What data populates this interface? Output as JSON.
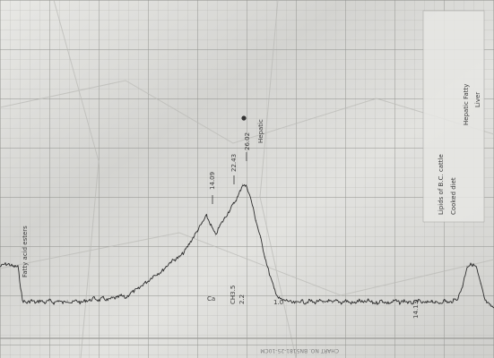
{
  "chart_data": {
    "type": "line",
    "title": "",
    "xlabel": "",
    "ylabel": "",
    "grid": true,
    "ylim": [
      0,
      100
    ],
    "x": [
      0,
      5,
      10,
      15,
      20,
      25,
      30,
      35,
      40,
      45,
      50,
      55,
      60,
      65,
      70,
      75,
      80,
      85,
      90,
      95,
      100,
      105,
      110,
      115,
      120,
      125,
      130,
      135,
      140,
      145,
      150,
      155,
      160,
      165,
      170,
      175,
      180,
      185,
      190,
      195,
      200,
      205,
      210,
      215,
      220,
      225,
      230,
      235,
      240,
      245,
      250,
      255,
      260,
      265,
      270,
      275,
      280,
      285,
      290,
      295,
      300,
      305,
      310,
      315,
      320,
      325,
      330,
      335,
      340,
      345,
      350,
      355,
      360,
      365,
      370,
      375,
      380,
      385,
      390,
      395,
      400,
      405,
      410,
      415,
      420,
      425,
      430,
      435,
      440,
      445,
      450,
      455,
      460,
      465,
      470,
      475,
      480,
      485,
      490,
      495,
      500,
      505,
      510,
      515,
      520,
      525,
      530,
      535,
      540,
      545,
      550
    ],
    "series": [
      {
        "values": [
          23,
          24,
          24,
          23,
          23,
          9,
          8,
          9,
          8,
          9,
          8,
          9,
          8,
          9,
          8,
          9,
          8,
          9,
          8,
          9,
          9,
          10,
          9,
          10,
          9,
          10,
          10,
          11,
          10,
          12,
          13,
          14,
          16,
          17,
          19,
          20,
          21,
          23,
          25,
          26,
          27,
          29,
          32,
          35,
          38,
          41,
          44,
          40,
          36,
          40,
          43,
          46,
          49,
          52,
          57,
          56,
          50,
          42,
          35,
          27,
          20,
          14,
          10,
          9,
          9,
          8,
          8,
          9,
          8,
          9,
          8,
          9,
          8,
          9,
          8,
          9,
          8,
          9,
          8,
          8,
          9,
          8,
          9,
          8,
          8,
          9,
          8,
          8,
          9,
          8,
          9,
          8,
          8,
          9,
          8,
          8,
          9,
          8,
          8,
          9,
          8,
          9,
          10,
          15,
          23,
          24,
          23,
          16,
          9,
          7,
          6
        ]
      }
    ],
    "annotations": [
      "Fatty acid esters",
      "14.09",
      "22.43",
      "26.02",
      "Ca",
      "Hepatic",
      "CH3.5",
      "2.2",
      "1.0",
      "14.13"
    ],
    "side_note": [
      "Lipids of B.C. cattle",
      "Cooked diet",
      "Hepatic Fatty",
      "Liver"
    ],
    "printed_label": "CHART NO. BN5181-25-10CM"
  }
}
